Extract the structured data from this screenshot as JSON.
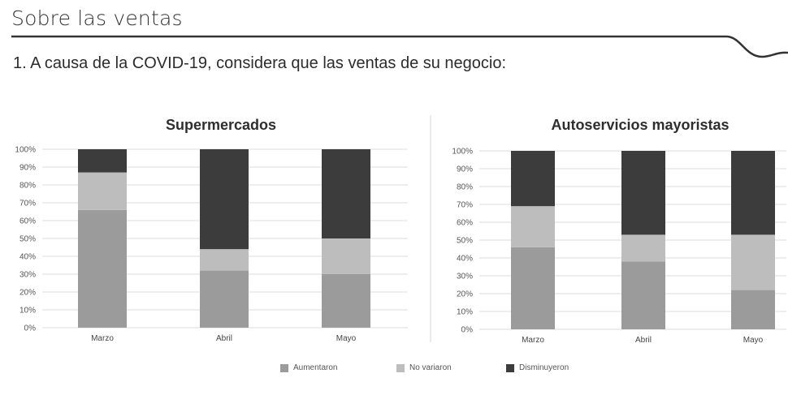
{
  "section_title": "Sobre las ventas",
  "question": "1. A causa de la COVID-19, considera que las ventas de su negocio:",
  "colors": {
    "aumentaron": "#9b9b9b",
    "no_variaron": "#bdbdbd",
    "disminuyeron": "#3c3c3c",
    "grid": "#dddddd",
    "rule": "#333333"
  },
  "legend": [
    {
      "label": "Aumentaron",
      "color": "#9b9b9b"
    },
    {
      "label": "No variaron",
      "color": "#bdbdbd"
    },
    {
      "label": "Disminuyeron",
      "color": "#3c3c3c"
    }
  ],
  "chart_data": [
    {
      "type": "bar",
      "stacked": true,
      "title": "Supermercados",
      "categories": [
        "Marzo",
        "Abril",
        "Mayo"
      ],
      "yticks": [
        "0%",
        "10%",
        "20%",
        "30%",
        "40%",
        "50%",
        "60%",
        "70%",
        "80%",
        "90%",
        "100%"
      ],
      "ylim": [
        0,
        100
      ],
      "grid": true,
      "series": [
        {
          "name": "Aumentaron",
          "values": [
            66,
            32,
            30
          ]
        },
        {
          "name": "No variaron",
          "values": [
            21,
            12,
            20
          ]
        },
        {
          "name": "Disminuyeron",
          "values": [
            13,
            56,
            50
          ]
        }
      ]
    },
    {
      "type": "bar",
      "stacked": true,
      "title": "Autoservicios mayoristas",
      "categories": [
        "Marzo",
        "Abril",
        "Mayo"
      ],
      "yticks": [
        "0%",
        "10%",
        "20%",
        "30%",
        "40%",
        "50%",
        "60%",
        "70%",
        "80%",
        "90%",
        "100%"
      ],
      "ylim": [
        0,
        100
      ],
      "grid": true,
      "series": [
        {
          "name": "Aumentaron",
          "values": [
            46,
            38,
            22
          ]
        },
        {
          "name": "No variaron",
          "values": [
            23,
            15,
            31
          ]
        },
        {
          "name": "Disminuyeron",
          "values": [
            31,
            47,
            47
          ]
        }
      ]
    }
  ]
}
